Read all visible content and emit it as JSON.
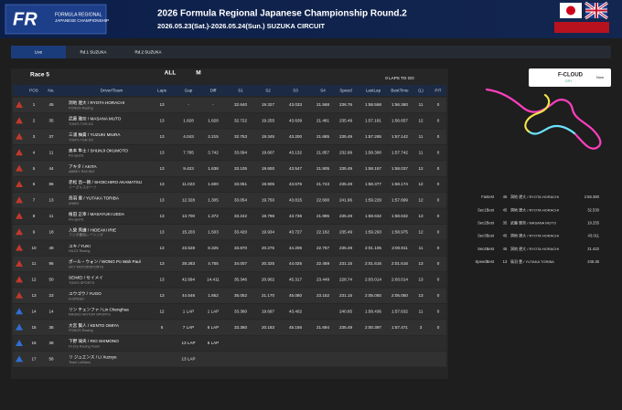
{
  "header": {
    "logo": [
      "FR",
      "FORMULA REGIONAL",
      "JAPANESE CHAMPIONSHIP"
    ],
    "title": "2026 Formula Regional Japanese Championship Round.2",
    "dates": "2026.05.23(Sat.)-2026.05.24(Sun.) SUZUKA CIRCUIT"
  },
  "tabs": [
    "Live",
    "Rd.1 SUZUKA",
    "Rd.2 SUZUKA"
  ],
  "session": {
    "name": "Race 5",
    "filters": [
      "ALL",
      "M"
    ],
    "laps_to_go": "0 LAPS TO GO"
  },
  "table": {
    "columns": [
      "POS",
      "No.",
      "Driver/Team",
      "Laps",
      "Gap",
      "Diff",
      "S1",
      "S2",
      "S3",
      "S4",
      "Speed",
      "LastLap",
      "BestTime",
      "(L)",
      "PIT"
    ],
    "rows": [
      {
        "badge": "#c0392b",
        "cells": [
          "1",
          "45",
          "洞地 遼大 / RYOTA HORACHI",
          "PONOS Racing",
          "13",
          "-",
          "-",
          "32.640",
          "19.327",
          "43.033",
          "21.568",
          "236.76",
          "1:58.568",
          "1:56.360",
          "11",
          "0"
        ]
      },
      {
        "badge": "#c0392b",
        "cells": [
          "2",
          "35",
          "武藤 雅奈 / MASANA MUTO",
          "TOM'S TGR-DC",
          "13",
          "1.828",
          "1.828",
          "32.722",
          "19.255",
          "43.639",
          "21.481",
          "235.49",
          "1:57.181",
          "1:56.657",
          "12",
          "0"
        ]
      },
      {
        "badge": "#c0392b",
        "cells": [
          "3",
          "37",
          "三浦 柚貴 / YUZUKI MIURA",
          "TOM'S TGR-DC",
          "13",
          "4.043",
          "2.215",
          "32.753",
          "19.345",
          "43.200",
          "21.685",
          "235.49",
          "1:57.265",
          "1:57.142",
          "11",
          "0"
        ]
      },
      {
        "badge": "#c0392b",
        "cells": [
          "4",
          "11",
          "奥本 隼士 / SHUNJI OKUMOTO",
          "Rn-sports",
          "13",
          "7.785",
          "3.742",
          "33.094",
          "19.607",
          "43.132",
          "21.857",
          "232.99",
          "1:58.300",
          "1:57.742",
          "11",
          "0"
        ]
      },
      {
        "badge": "#c0392b",
        "cells": [
          "5",
          "44",
          "アキタ / AKITA",
          "ABBEY RACING",
          "13",
          "9.423",
          "1.638",
          "33.105",
          "19.600",
          "43.547",
          "21.905",
          "235.49",
          "1:58.157",
          "1:58.037",
          "12",
          "0"
        ]
      },
      {
        "badge": "#c0392b",
        "cells": [
          "6",
          "86",
          "赤松 昌一朗 / SHOICHIRO AKAMATSU",
          "イーグルスポーツ",
          "13",
          "11.023",
          "1.600",
          "33.051",
          "19.905",
          "43.676",
          "21.743",
          "235.49",
          "1:58.377",
          "1:58.174",
          "12",
          "0"
        ]
      },
      {
        "badge": "#c0392b",
        "cells": [
          "7",
          "13",
          "鳥羽 豊 / YUTAKA TORIBA",
          "AIWIN",
          "13",
          "12.328",
          "1.305",
          "33.054",
          "19.750",
          "43.815",
          "22.600",
          "241.96",
          "1:59.229",
          "1:57.699",
          "12",
          "0"
        ]
      },
      {
        "badge": "#c0392b",
        "cells": [
          "8",
          "11",
          "植田 正幸 / MASAYUKI UEDA",
          "Rn-sports",
          "13",
          "13.700",
          "1.372",
          "33.242",
          "19.796",
          "43.736",
          "21.995",
          "235.49",
          "1:58.632",
          "1:58.632",
          "13",
          "0"
        ]
      },
      {
        "badge": "#c0392b",
        "cells": [
          "9",
          "18",
          "入榮 秀謙 / HIDEAKI IRIE",
          "フジタ薬局レーシング",
          "13",
          "15.203",
          "1.503",
          "33.420",
          "19.934",
          "43.727",
          "22.182",
          "235.49",
          "1:59.293",
          "1:58.975",
          "12",
          "0"
        ]
      },
      {
        "badge": "#c0392b",
        "cells": [
          "10",
          "48",
          "ユキ / YUKI",
          "NILZZ Racing",
          "13",
          "23.528",
          "8.325",
          "33.870",
          "20.275",
          "44.206",
          "22.757",
          "235.49",
          "2:01.105",
          "2:00.811",
          "11",
          "0"
        ]
      },
      {
        "badge": "#c0392b",
        "cells": [
          "11",
          "96",
          "ポール・ウォン / WONG Po Wah Paul",
          "SKY MOTORSPORTS",
          "13",
          "28.283",
          "4.755",
          "34.007",
          "20.325",
          "44.025",
          "22.459",
          "231.15",
          "2:01.616",
          "2:01.616",
          "13",
          "0"
        ]
      },
      {
        "badge": "#c0392b",
        "cells": [
          "12",
          "50",
          "SEIMEI / セイメイ",
          "TOM'S SPORTS",
          "13",
          "42.694",
          "14.411",
          "35.346",
          "20.902",
          "45.317",
          "23.449",
          "228.74",
          "2:03.014",
          "2:03.014",
          "13",
          "0"
        ]
      },
      {
        "badge": "#c0392b",
        "cells": [
          "13",
          "23",
          "ユウゴウ / YUGO",
          "N-SPEED",
          "13",
          "44.546",
          "1.852",
          "35.052",
          "21.170",
          "45.080",
          "23.152",
          "231.15",
          "2:05.050",
          "2:05.050",
          "13",
          "0"
        ]
      },
      {
        "badge": "#2e6fd1",
        "cells": [
          "14",
          "14",
          "リン チェンファ / Lin Chenghua",
          "RAGNO MOTOR SPORTS",
          "12",
          "1 LAP",
          "1 LAP",
          "33.360",
          "19.697",
          "43.402",
          null,
          "240.65",
          "1:58.436",
          "1:57.632",
          "11",
          "0"
        ]
      },
      {
        "badge": "#2e6fd1",
        "cells": [
          "15",
          "36",
          "大宮 賢人 / KENTO OMIYA",
          "PONOS Racing",
          "6",
          "7 LAP",
          "6 LAP",
          "33.360",
          "20.183",
          "45.156",
          "21.694",
          "235.49",
          "2:00.397",
          "1:57.471",
          "3",
          "0"
        ]
      },
      {
        "badge": "#2e6fd1",
        "cells": [
          "16",
          "38",
          "下野 璃央 / RIO SHIMONO",
          "Dr.Dry Racing Team",
          null,
          "13 LAP",
          "6 LAP",
          null,
          null,
          null,
          null,
          null,
          null,
          null,
          null,
          null
        ]
      },
      {
        "badge": "#2e6fd1",
        "cells": [
          "17",
          "58",
          "リ ジュエンス / LI Xuzsyu",
          "Team LeMans",
          null,
          "13 LAP",
          null,
          null,
          null,
          null,
          null,
          null,
          null,
          null,
          null,
          null
        ]
      }
    ]
  },
  "weather": {
    "condition": "F-CLOUD",
    "track": "DRY",
    "time": "Now"
  },
  "bests": [
    {
      "label": "Fastest",
      "no": "45",
      "driver": "洞地 遼大 / RYOTA HORACHI",
      "time": "1:56.360"
    },
    {
      "label": "Sec1Best",
      "no": "45",
      "driver": "洞地 遼大 / RYOTA HORACHI",
      "time": "32.530"
    },
    {
      "label": "Sec2Best",
      "no": "35",
      "driver": "武藤 雅奈 / MASANA MUTO",
      "time": "19.255"
    },
    {
      "label": "Sec3Best",
      "no": "45",
      "driver": "洞地 遼大 / RYOTA HORACHI",
      "time": "43.011"
    },
    {
      "label": "Sec4Best",
      "no": "45",
      "driver": "洞地 遼大 / RYOTA HORACHI",
      "time": "21.422"
    },
    {
      "label": "SpeedBest",
      "no": "13",
      "driver": "鳥羽 豊 / YUTAKA TORIBA",
      "time": "245.36"
    }
  ]
}
